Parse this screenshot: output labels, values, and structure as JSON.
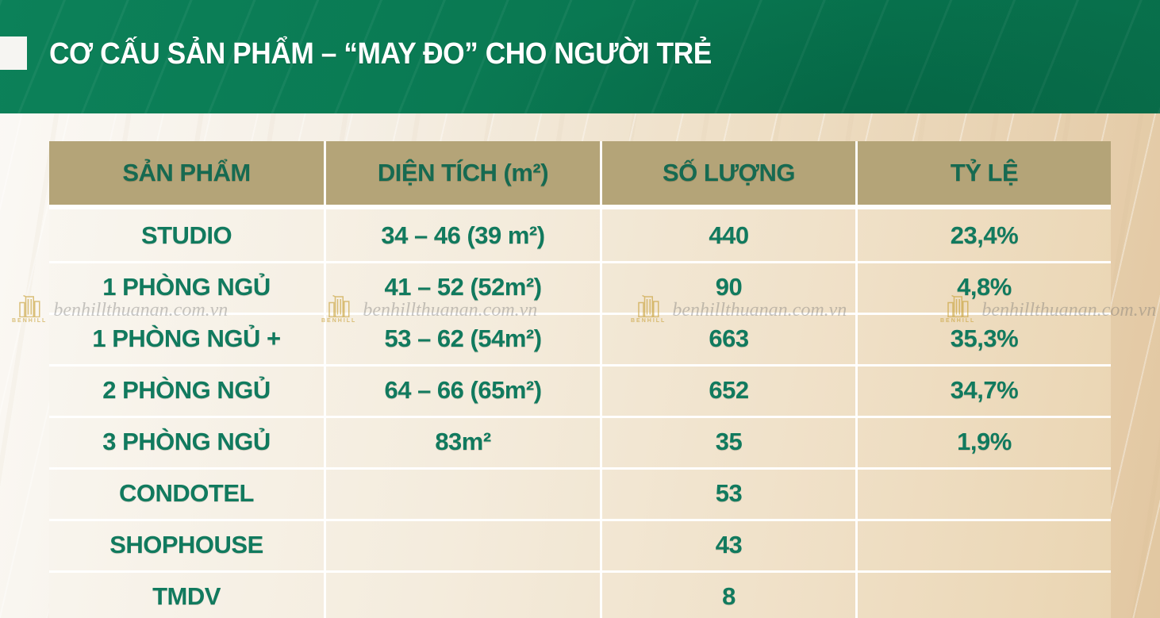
{
  "slide": {
    "title": "CƠ CẤU SẢN PHẨM – “MAY ĐO” CHO NGƯỜI TRẺ"
  },
  "watermark": {
    "text": "benhillthuanan.com.vn",
    "logo_text": "BENHILL"
  },
  "colors": {
    "band_green": "#0a7a53",
    "table_header_bg": "#b4a478",
    "cell_text_green": "#117a5e",
    "page_tan": "#e2c7a1",
    "watermark_gold": "#c9a23a"
  },
  "chart_data": {
    "type": "table",
    "title": "CƠ CẤU SẢN PHẨM – “MAY ĐO” CHO NGƯỜI TRẺ",
    "columns": [
      "SẢN PHẨM",
      "DIỆN TÍCH (m²)",
      "SỐ LƯỢNG",
      "TỶ LỆ"
    ],
    "rows": [
      [
        "STUDIO",
        "34 – 46 (39 m²)",
        "440",
        "23,4%"
      ],
      [
        "1 PHÒNG NGỦ",
        "41 – 52 (52m²)",
        "90",
        "4,8%"
      ],
      [
        "1 PHÒNG NGỦ +",
        "53 – 62 (54m²)",
        "663",
        "35,3%"
      ],
      [
        "2 PHÒNG NGỦ",
        "64 – 66 (65m²)",
        "652",
        "34,7%"
      ],
      [
        "3 PHÒNG NGỦ",
        "83m²",
        "35",
        "1,9%"
      ],
      [
        "CONDOTEL",
        "",
        "53",
        ""
      ],
      [
        "SHOPHOUSE",
        "",
        "43",
        ""
      ],
      [
        "TMDV",
        "",
        "8",
        ""
      ]
    ]
  }
}
